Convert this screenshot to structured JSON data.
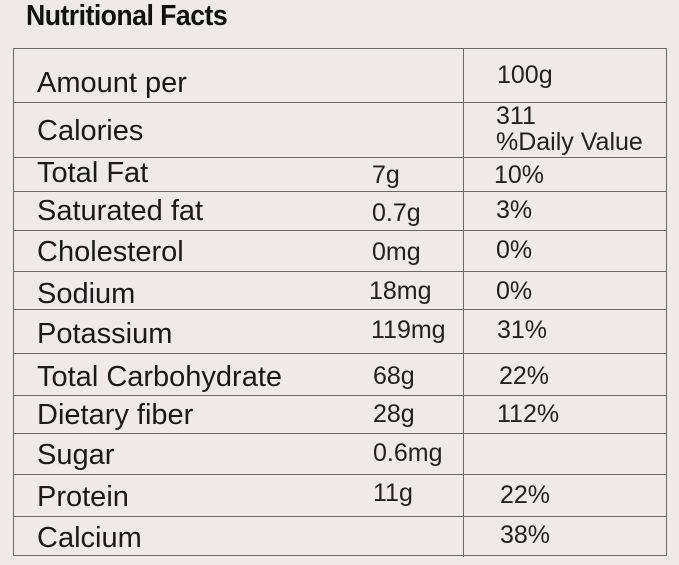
{
  "title": "Nutritional Facts",
  "header": {
    "amount_per_label": "Amount per",
    "amount_per_value": "100g",
    "calories_label": "Calories",
    "calories_value": "311",
    "daily_value_label": "%Daily Value"
  },
  "rows": [
    {
      "name": "Total Fat",
      "amount": "7g",
      "dv": "10%"
    },
    {
      "name": "Saturated fat",
      "amount": "0.7g",
      "dv": "3%"
    },
    {
      "name": "Cholesterol",
      "amount": "0mg",
      "dv": "0%"
    },
    {
      "name": "Sodium",
      "amount": "18mg",
      "dv": "0%"
    },
    {
      "name": "Potassium",
      "amount": "119mg",
      "dv": "31%"
    },
    {
      "name": "Total Carbohydrate",
      "amount": "68g",
      "dv": "22%"
    },
    {
      "name": "Dietary fiber",
      "amount": "28g",
      "dv": "112%"
    },
    {
      "name": "Sugar",
      "amount": "0.6mg",
      "dv": ""
    },
    {
      "name": "Protein",
      "amount": "11g",
      "dv": "22%"
    },
    {
      "name": "Calcium",
      "amount": "",
      "dv": "38%"
    }
  ]
}
